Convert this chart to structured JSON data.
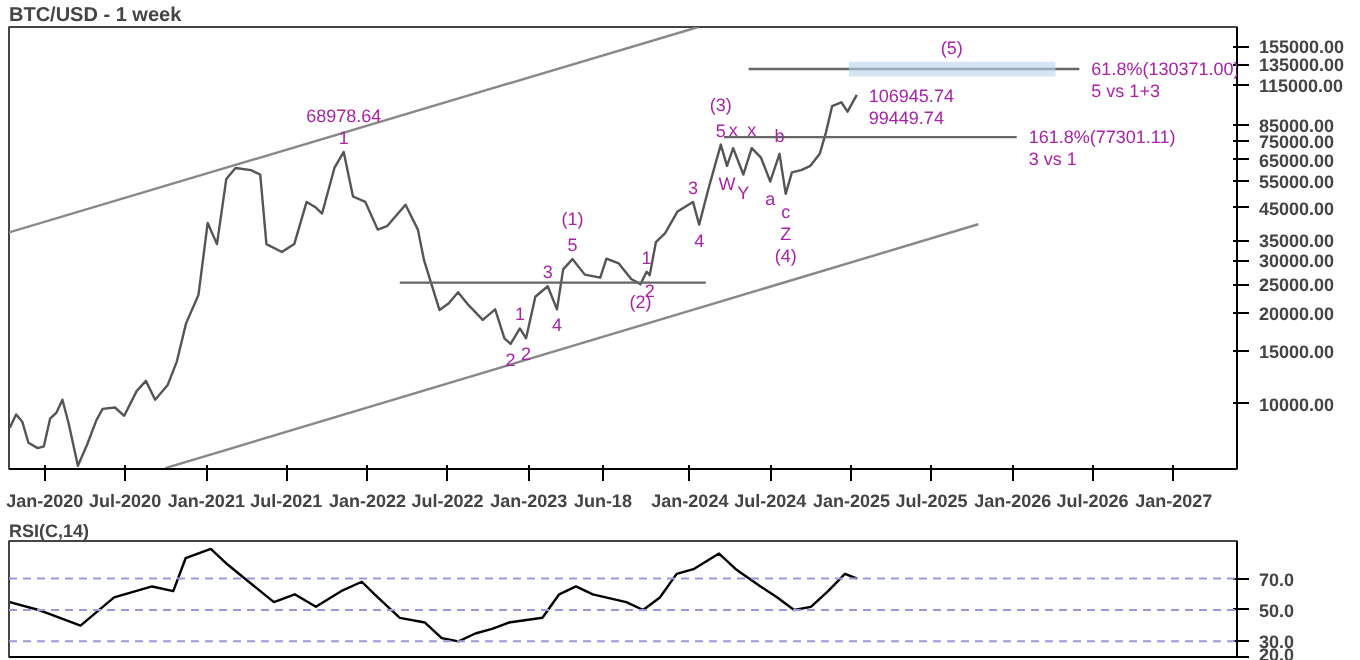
{
  "chart_data": [
    {
      "type": "line",
      "title": "BTC/USD - 1 week",
      "log": "y",
      "xlim": [
        "2019-10-12",
        "2027-05-24"
      ],
      "ylim": [
        6050,
        180000
      ],
      "xticks": [
        {
          "value": "2020-01-01",
          "label": "Jan-2020"
        },
        {
          "value": "2020-07-01",
          "label": "Jul-2020"
        },
        {
          "value": "2021-01-01",
          "label": "Jan-2021"
        },
        {
          "value": "2021-07-01",
          "label": "Jul-2021"
        },
        {
          "value": "2022-01-01",
          "label": "Jan-2022"
        },
        {
          "value": "2022-07-01",
          "label": "Jul-2022"
        },
        {
          "value": "2023-01-01",
          "label": "Jan-2023"
        },
        {
          "value": "2023-06-18",
          "label": "Jun-18"
        },
        {
          "value": "2024-01-01",
          "label": "Jan-2024"
        },
        {
          "value": "2024-07-01",
          "label": "Jul-2024"
        },
        {
          "value": "2025-01-01",
          "label": "Jan-2025"
        },
        {
          "value": "2025-07-01",
          "label": "Jul-2025"
        },
        {
          "value": "2026-01-01",
          "label": "Jan-2026"
        },
        {
          "value": "2026-07-01",
          "label": "Jul-2026"
        },
        {
          "value": "2027-01-01",
          "label": "Jan-2027"
        }
      ],
      "yticks": [
        {
          "value": 10000,
          "label": "10000.00"
        },
        {
          "value": 15000,
          "label": "15000.00"
        },
        {
          "value": 20000,
          "label": "20000.00"
        },
        {
          "value": 25000,
          "label": "25000.00"
        },
        {
          "value": 30000,
          "label": "30000.00"
        },
        {
          "value": 35000,
          "label": "35000.00"
        },
        {
          "value": 45000,
          "label": "45000.00"
        },
        {
          "value": 55000,
          "label": "55000.00"
        },
        {
          "value": 65000,
          "label": "65000.00"
        },
        {
          "value": 75000,
          "label": "75000.00"
        },
        {
          "value": 85000,
          "label": "85000.00"
        },
        {
          "value": 115000,
          "label": "115000.00"
        },
        {
          "value": 135000,
          "label": "135000.00"
        },
        {
          "value": 155000,
          "label": "155000.00"
        }
      ],
      "series": [
        {
          "color": "#555555",
          "x": [
            "2019-10-14",
            "2019-10-28",
            "2019-11-11",
            "2019-11-25",
            "2019-12-16",
            "2019-12-30",
            "2020-01-13",
            "2020-01-27",
            "2020-02-10",
            "2020-02-24",
            "2020-03-16",
            "2020-04-06",
            "2020-04-27",
            "2020-05-11",
            "2020-06-08",
            "2020-06-29",
            "2020-07-27",
            "2020-08-17",
            "2020-09-07",
            "2020-10-05",
            "2020-10-26",
            "2020-11-16",
            "2020-12-14",
            "2021-01-04",
            "2021-01-25",
            "2021-02-15",
            "2021-03-08",
            "2021-04-12",
            "2021-05-03",
            "2021-05-17",
            "2021-06-21",
            "2021-07-19",
            "2021-08-16",
            "2021-09-06",
            "2021-09-20",
            "2021-10-18",
            "2021-11-08",
            "2021-11-29",
            "2021-12-27",
            "2022-01-24",
            "2022-02-14",
            "2022-03-28",
            "2022-04-25",
            "2022-05-09",
            "2022-06-13",
            "2022-07-04",
            "2022-07-25",
            "2022-08-15",
            "2022-09-19",
            "2022-10-17",
            "2022-11-07",
            "2022-11-21",
            "2022-12-12",
            "2022-12-26",
            "2023-01-16",
            "2023-02-13",
            "2023-03-06",
            "2023-03-20",
            "2023-04-10",
            "2023-05-08",
            "2023-06-12",
            "2023-06-26",
            "2023-07-24",
            "2023-08-21",
            "2023-09-11",
            "2023-09-25",
            "2023-10-02",
            "2023-10-16",
            "2023-11-06",
            "2023-12-04",
            "2024-01-08",
            "2024-01-22",
            "2024-02-12",
            "2024-03-11",
            "2024-03-25",
            "2024-04-08",
            "2024-05-01",
            "2024-05-20",
            "2024-06-10",
            "2024-07-01",
            "2024-07-22",
            "2024-08-05",
            "2024-08-19",
            "2024-09-09",
            "2024-09-30",
            "2024-10-21",
            "2024-11-04",
            "2024-11-18",
            "2024-12-09",
            "2024-12-23",
            "2025-01-13"
          ],
          "values": [
            8300,
            9200,
            8700,
            7400,
            7100,
            7200,
            8900,
            9300,
            10300,
            8600,
            6200,
            7300,
            8800,
            9600,
            9700,
            9100,
            11000,
            11900,
            10300,
            11500,
            13800,
            18500,
            23000,
            40000,
            34000,
            56000,
            61000,
            60000,
            58000,
            34000,
            32000,
            34000,
            47000,
            45000,
            43000,
            61000,
            68978.64,
            49000,
            47000,
            38000,
            39000,
            46000,
            38000,
            30000,
            20500,
            21600,
            23500,
            21500,
            19000,
            20600,
            16500,
            15800,
            17800,
            16500,
            22700,
            24600,
            20600,
            28000,
            30300,
            26900,
            26300,
            30400,
            29300,
            26000,
            25000,
            27500,
            26800,
            34500,
            37000,
            43700,
            47000,
            39500,
            52000,
            73000,
            62000,
            71000,
            58000,
            71000,
            66000,
            55000,
            68000,
            50000,
            59000,
            60000,
            62000,
            68000,
            80000,
            98000,
            101000,
            94000,
            106945.74
          ]
        },
        {
          "color": "#888888",
          "x": [
            "2019-10-12",
            "2024-01-20"
          ],
          "values": [
            37200,
            180000
          ]
        },
        {
          "color": "#888888",
          "x": [
            "2020-09-30",
            "2025-10-15"
          ],
          "values": [
            6090,
            39600
          ]
        },
        {
          "color": "#666666",
          "x": [
            "2022-03-15",
            "2024-02-06"
          ],
          "values": [
            25300,
            25300
          ]
        },
        {
          "color": "#666666",
          "x": [
            "2024-03-18",
            "2026-01-10"
          ],
          "values": [
            77300,
            77300
          ]
        },
        {
          "color": "#666666",
          "x": [
            "2024-05-13",
            "2026-06-01"
          ],
          "values": [
            130400,
            130400
          ]
        },
        {
          "color": "#b9d3ec",
          "x": [
            "2024-12-26",
            "2026-04-08"
          ],
          "values": [
            null,
            null
          ],
          "lower": [
            123000,
            123000
          ],
          "upper": [
            137800,
            137800
          ]
        }
      ],
      "annotations": [
        {
          "text": "1",
          "x": "2021-11-08",
          "y": 68978.64
        },
        {
          "text": "68978.64",
          "x": "2021-11-08",
          "y": 68978.64
        },
        {
          "text": "2",
          "x": "2022-11-21",
          "y": 15800
        },
        {
          "text": "1",
          "x": "2022-12-12",
          "y": 17800
        },
        {
          "text": "2",
          "x": "2022-12-26",
          "y": 16500
        },
        {
          "text": "3",
          "x": "2023-02-13",
          "y": 24600
        },
        {
          "text": "4",
          "x": "2023-03-06",
          "y": 20600
        },
        {
          "text": "5",
          "x": "2023-04-10",
          "y": 30300
        },
        {
          "text": "(1)",
          "x": "2023-04-10",
          "y": 30300
        },
        {
          "text": "(2)",
          "x": "2023-09-11",
          "y": 25000
        },
        {
          "text": "1",
          "x": "2023-09-25",
          "y": 27500
        },
        {
          "text": "2",
          "x": "2023-10-02",
          "y": 26800
        },
        {
          "text": "3",
          "x": "2024-01-08",
          "y": 47000
        },
        {
          "text": "4",
          "x": "2024-01-22",
          "y": 39500
        },
        {
          "text": "5",
          "x": "2024-03-11",
          "y": 73000
        },
        {
          "text": "(3)",
          "x": "2024-03-11",
          "y": 73000
        },
        {
          "text": "W",
          "x": "2024-03-25",
          "y": 62000
        },
        {
          "text": "x",
          "x": "2024-04-08",
          "y": 71000
        },
        {
          "text": "Y",
          "x": "2024-05-01",
          "y": 58000
        },
        {
          "text": "x",
          "x": "2024-05-20",
          "y": 71000
        },
        {
          "text": "a",
          "x": "2024-07-01",
          "y": 55000
        },
        {
          "text": "b",
          "x": "2024-07-22",
          "y": 68000
        },
        {
          "text": "c",
          "x": "2024-08-05",
          "y": 50000
        },
        {
          "text": "Z",
          "x": "2024-08-05",
          "y": 50000
        },
        {
          "text": "(4)",
          "x": "2024-08-05",
          "y": 50000
        },
        {
          "text": "(5)",
          "x": "2025-08-16",
          "y": 137800
        },
        {
          "text": "106945.74",
          "x": "2025-01-13",
          "y": 106945.74
        },
        {
          "text": "99449.74",
          "x": "2025-01-13",
          "y": 106945.74
        },
        {
          "text": "61.8%(130371.00)",
          "x": "2026-06-01",
          "y": 130400
        },
        {
          "text": "5 vs 1+3",
          "x": "2026-06-01",
          "y": 130400
        },
        {
          "text": "161.8%(77301.11)",
          "x": "2026-01-10",
          "y": 77300
        },
        {
          "text": "3 vs 1",
          "x": "2026-01-10",
          "y": 77300
        }
      ]
    },
    {
      "type": "line",
      "title": "RSI(C,14)",
      "tick_labels": "y",
      "xlim": [
        "2019-10-12",
        "2027-05-24"
      ],
      "ylim": [
        20,
        94
      ],
      "yticks": [
        {
          "value": 20,
          "label": "20.0"
        },
        {
          "value": 30,
          "label": "30.0"
        },
        {
          "value": 50,
          "label": "50.0"
        },
        {
          "value": 70,
          "label": "70.0"
        }
      ],
      "ref_lines": [
        {
          "axis": "y",
          "value": 70,
          "color": "#9999dd",
          "line_style": "dashed"
        },
        {
          "axis": "y",
          "value": 50,
          "color": "#9999dd",
          "line_style": "dashed"
        },
        {
          "axis": "y",
          "value": 30,
          "color": "#9999dd",
          "line_style": "dashed"
        }
      ],
      "series": [
        {
          "color": "#000000",
          "x": [
            "2019-10-14",
            "2019-12-18",
            "2020-03-22",
            "2020-06-06",
            "2020-08-31",
            "2020-10-18",
            "2020-11-15",
            "2021-01-11",
            "2021-02-18",
            "2021-04-07",
            "2021-06-03",
            "2021-07-20",
            "2021-09-06",
            "2021-11-02",
            "2021-12-19",
            "2022-01-17",
            "2022-03-15",
            "2022-05-11",
            "2022-06-18",
            "2022-07-26",
            "2022-09-02",
            "2022-10-10",
            "2022-11-17",
            "2023-02-01",
            "2023-03-11",
            "2023-04-18",
            "2023-05-26",
            "2023-08-10",
            "2023-09-17",
            "2023-10-25",
            "2023-12-02",
            "2024-01-09",
            "2024-03-07",
            "2024-04-14",
            "2024-06-09",
            "2024-07-17",
            "2024-08-24",
            "2024-10-01",
            "2024-11-09",
            "2024-12-17",
            "2025-01-14"
          ],
          "values": [
            55,
            50,
            40,
            58,
            65,
            62,
            83,
            89,
            79,
            68,
            55,
            60,
            52,
            62,
            68,
            60,
            45,
            42,
            32,
            30,
            35,
            38,
            42,
            45,
            60,
            65,
            60,
            55,
            50,
            58,
            73,
            76,
            86,
            76,
            65,
            58,
            50,
            52,
            62,
            73,
            70
          ]
        }
      ]
    }
  ]
}
